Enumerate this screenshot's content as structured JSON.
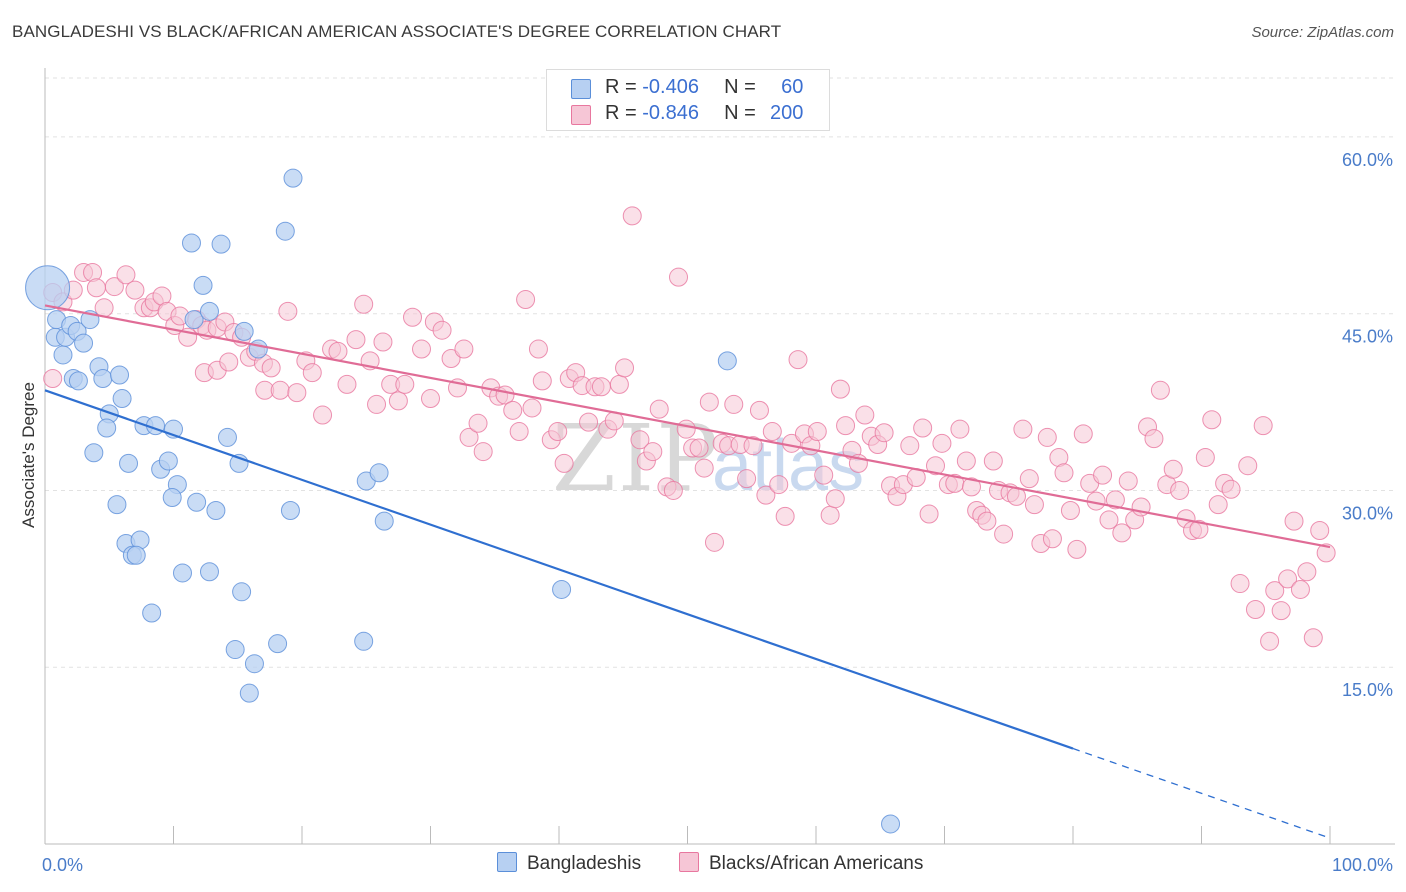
{
  "title": "BANGLADESHI VS BLACK/AFRICAN AMERICAN ASSOCIATE'S DEGREE CORRELATION CHART",
  "source": "Source: ZipAtlas.com",
  "watermark": {
    "zip": "ZIP",
    "atlas": "atlas"
  },
  "colors": {
    "blue": "#5b8fd9",
    "blue_fill": "#b7d0f2",
    "blue_line": "#2f6fd0",
    "pink": "#e8779f",
    "pink_fill": "#f6c6d6",
    "pink_line": "#e06c96",
    "tick": "#4a7cc9",
    "grid": "#e2e2e2"
  },
  "legend": {
    "rows": [
      {
        "r_label": "R =",
        "r_value": "-0.406",
        "n_label": "N =",
        "n_value": "60",
        "series": "blue"
      },
      {
        "r_label": "R =",
        "r_value": "-0.846",
        "n_label": "N =",
        "n_value": "200",
        "series": "pink"
      }
    ],
    "bottom": [
      "Bangladeshis",
      "Blacks/African Americans"
    ]
  },
  "chart_data": {
    "type": "scatter",
    "xlabel": "",
    "ylabel": "Associate's Degree",
    "xlim": [
      0,
      100
    ],
    "ylim": [
      0,
      65
    ],
    "x_tick_labels": [
      {
        "value": 0,
        "label": "0.0%"
      },
      {
        "value": 100,
        "label": "100.0%"
      }
    ],
    "y_tick_labels": [
      {
        "value": 15,
        "label": "15.0%"
      },
      {
        "value": 30,
        "label": "30.0%"
      },
      {
        "value": 45,
        "label": "45.0%"
      },
      {
        "value": 60,
        "label": "60.0%"
      }
    ],
    "grid": true,
    "series": [
      {
        "name": "Bangladeshis",
        "color": "blue",
        "trend": {
          "x0": 0,
          "y0": 38.5,
          "x1": 100,
          "y1": 0.5,
          "solid_until_x": 80
        },
        "points": [
          [
            0.2,
            47.2
          ],
          [
            0.8,
            43
          ],
          [
            0.9,
            44.5
          ],
          [
            1.4,
            41.5
          ],
          [
            1.6,
            43
          ],
          [
            2.0,
            44
          ],
          [
            2.5,
            43.5
          ],
          [
            3.0,
            42.5
          ],
          [
            3.5,
            44.5
          ],
          [
            2.2,
            39.5
          ],
          [
            2.6,
            39.3
          ],
          [
            4.2,
            40.5
          ],
          [
            4.5,
            39.5
          ],
          [
            5.8,
            39.8
          ],
          [
            5.0,
            36.5
          ],
          [
            4.8,
            35.3
          ],
          [
            6.0,
            37.8
          ],
          [
            7.7,
            35.5
          ],
          [
            8.6,
            35.5
          ],
          [
            10.0,
            35.2
          ],
          [
            3.8,
            33.2
          ],
          [
            6.5,
            32.3
          ],
          [
            9.0,
            31.8
          ],
          [
            9.6,
            32.5
          ],
          [
            10.3,
            30.5
          ],
          [
            9.9,
            29.4
          ],
          [
            11.8,
            29
          ],
          [
            13.3,
            28.3
          ],
          [
            5.6,
            28.8
          ],
          [
            6.3,
            25.5
          ],
          [
            7.4,
            25.8
          ],
          [
            6.8,
            24.5
          ],
          [
            7.1,
            24.5
          ],
          [
            10.7,
            23
          ],
          [
            12.8,
            23.1
          ],
          [
            15.3,
            21.4
          ],
          [
            8.3,
            19.6
          ],
          [
            14.8,
            16.5
          ],
          [
            16.3,
            15.3
          ],
          [
            15.9,
            12.8
          ],
          [
            18.1,
            17
          ],
          [
            24.8,
            17.2
          ],
          [
            19.1,
            28.3
          ],
          [
            14.2,
            34.5
          ],
          [
            15.1,
            32.3
          ],
          [
            25,
            30.8
          ],
          [
            26,
            31.5
          ],
          [
            26.4,
            27.4
          ],
          [
            18.7,
            52.0
          ],
          [
            19.3,
            56.5
          ],
          [
            11.4,
            51
          ],
          [
            13.7,
            50.9
          ],
          [
            12.3,
            47.4
          ],
          [
            11.6,
            44.5
          ],
          [
            12.8,
            45.2
          ],
          [
            15.5,
            43.5
          ],
          [
            16.6,
            42
          ],
          [
            53.1,
            41
          ],
          [
            40.2,
            21.6
          ],
          [
            65.8,
            1.7
          ]
        ]
      },
      {
        "name": "Blacks/African Americans",
        "color": "pink",
        "trend": {
          "x0": 0,
          "y0": 45.7,
          "x1": 100,
          "y1": 25.2
        },
        "points": [
          [
            0.6,
            46.8
          ],
          [
            0.6,
            39.5
          ],
          [
            1.4,
            46
          ],
          [
            2.2,
            47
          ],
          [
            3.0,
            48.5
          ],
          [
            3.7,
            48.5
          ],
          [
            4.0,
            47.2
          ],
          [
            4.6,
            45.5
          ],
          [
            5.4,
            47.3
          ],
          [
            6.3,
            48.3
          ],
          [
            7.0,
            47
          ],
          [
            7.7,
            45.5
          ],
          [
            8.2,
            45.5
          ],
          [
            8.5,
            46
          ],
          [
            9.1,
            46.5
          ],
          [
            9.5,
            45.2
          ],
          [
            10.1,
            44
          ],
          [
            10.5,
            44.8
          ],
          [
            11.1,
            43
          ],
          [
            11.8,
            44.5
          ],
          [
            12.2,
            44
          ],
          [
            12.6,
            43.6
          ],
          [
            13.4,
            43.8
          ],
          [
            14.0,
            44.3
          ],
          [
            14.7,
            43.4
          ],
          [
            15.3,
            43
          ],
          [
            15.9,
            41.3
          ],
          [
            16.4,
            41.8
          ],
          [
            17.0,
            40.8
          ],
          [
            17.6,
            40.4
          ],
          [
            12.4,
            40
          ],
          [
            13.4,
            40.2
          ],
          [
            14.3,
            40.9
          ],
          [
            17.1,
            38.5
          ],
          [
            18.3,
            38.5
          ],
          [
            18.9,
            45.2
          ],
          [
            19.6,
            38.3
          ],
          [
            20.3,
            41
          ],
          [
            20.8,
            40
          ],
          [
            21.6,
            36.4
          ],
          [
            22.3,
            42
          ],
          [
            22.8,
            41.8
          ],
          [
            23.5,
            39
          ],
          [
            24.2,
            42.8
          ],
          [
            24.8,
            45.8
          ],
          [
            25.3,
            41
          ],
          [
            25.8,
            37.3
          ],
          [
            26.3,
            42.6
          ],
          [
            26.9,
            39
          ],
          [
            27.5,
            37.6
          ],
          [
            28.0,
            39
          ],
          [
            28.6,
            44.7
          ],
          [
            29.3,
            42
          ],
          [
            30.0,
            37.8
          ],
          [
            30.3,
            44.3
          ],
          [
            30.9,
            43.6
          ],
          [
            31.6,
            41.2
          ],
          [
            32.1,
            38.7
          ],
          [
            32.6,
            42
          ],
          [
            33.0,
            34.5
          ],
          [
            33.7,
            35.7
          ],
          [
            34.1,
            33.3
          ],
          [
            34.7,
            38.7
          ],
          [
            35.3,
            38
          ],
          [
            35.8,
            38.1
          ],
          [
            36.4,
            36.8
          ],
          [
            36.9,
            35
          ],
          [
            37.4,
            46.2
          ],
          [
            37.9,
            37
          ],
          [
            38.4,
            42
          ],
          [
            38.7,
            39.3
          ],
          [
            39.4,
            34.3
          ],
          [
            39.9,
            35
          ],
          [
            40.4,
            32.3
          ],
          [
            40.8,
            39.5
          ],
          [
            41.3,
            40
          ],
          [
            41.8,
            38.9
          ],
          [
            42.3,
            35.8
          ],
          [
            42.8,
            38.8
          ],
          [
            43.3,
            38.8
          ],
          [
            43.8,
            35.2
          ],
          [
            44.3,
            35.9
          ],
          [
            44.7,
            39
          ],
          [
            45.1,
            40.4
          ],
          [
            45.7,
            53.3
          ],
          [
            46.3,
            34.3
          ],
          [
            46.8,
            32.5
          ],
          [
            47.3,
            33.3
          ],
          [
            47.8,
            36.9
          ],
          [
            48.4,
            30.3
          ],
          [
            48.9,
            30
          ],
          [
            49.3,
            48.1
          ],
          [
            49.9,
            35.2
          ],
          [
            50.4,
            33.6
          ],
          [
            50.9,
            33.6
          ],
          [
            51.3,
            31.9
          ],
          [
            51.7,
            37.5
          ],
          [
            52.1,
            25.6
          ],
          [
            52.7,
            34
          ],
          [
            53.2,
            33.8
          ],
          [
            53.6,
            37.3
          ],
          [
            54.1,
            33.9
          ],
          [
            54.6,
            31
          ],
          [
            55.1,
            33.8
          ],
          [
            55.6,
            36.8
          ],
          [
            56.1,
            29.6
          ],
          [
            56.6,
            35
          ],
          [
            57.1,
            30.5
          ],
          [
            57.6,
            27.8
          ],
          [
            58.1,
            34
          ],
          [
            58.6,
            41.1
          ],
          [
            59.1,
            34.8
          ],
          [
            59.6,
            33.8
          ],
          [
            60.1,
            35
          ],
          [
            60.6,
            31.3
          ],
          [
            61.1,
            27.9
          ],
          [
            61.5,
            29.3
          ],
          [
            61.9,
            38.6
          ],
          [
            62.3,
            35.5
          ],
          [
            62.8,
            33.4
          ],
          [
            63.3,
            32.3
          ],
          [
            63.8,
            36.4
          ],
          [
            64.3,
            34.6
          ],
          [
            64.8,
            33.9
          ],
          [
            65.3,
            34.9
          ],
          [
            65.8,
            30.4
          ],
          [
            66.3,
            29.5
          ],
          [
            66.8,
            30.5
          ],
          [
            67.3,
            33.8
          ],
          [
            67.8,
            31.1
          ],
          [
            68.3,
            35.3
          ],
          [
            68.8,
            28
          ],
          [
            69.3,
            32.1
          ],
          [
            69.8,
            34
          ],
          [
            70.3,
            30.5
          ],
          [
            70.8,
            30.6
          ],
          [
            71.2,
            35.2
          ],
          [
            71.7,
            32.5
          ],
          [
            72.1,
            30.3
          ],
          [
            72.5,
            28.3
          ],
          [
            72.9,
            27.9
          ],
          [
            73.3,
            27.4
          ],
          [
            73.8,
            32.5
          ],
          [
            74.2,
            30
          ],
          [
            74.6,
            26.3
          ],
          [
            75.1,
            29.8
          ],
          [
            75.6,
            29.5
          ],
          [
            76.1,
            35.2
          ],
          [
            76.6,
            31
          ],
          [
            77.0,
            28.8
          ],
          [
            77.5,
            25.5
          ],
          [
            78.0,
            34.5
          ],
          [
            78.4,
            25.9
          ],
          [
            78.9,
            32.8
          ],
          [
            79.3,
            31.5
          ],
          [
            79.8,
            28.3
          ],
          [
            80.3,
            25
          ],
          [
            80.8,
            34.8
          ],
          [
            81.3,
            30.6
          ],
          [
            81.8,
            29.1
          ],
          [
            82.3,
            31.3
          ],
          [
            82.8,
            27.5
          ],
          [
            83.3,
            29.2
          ],
          [
            83.8,
            26.4
          ],
          [
            84.3,
            30.8
          ],
          [
            84.8,
            27.5
          ],
          [
            85.3,
            28.6
          ],
          [
            85.8,
            35.4
          ],
          [
            86.3,
            34.4
          ],
          [
            86.8,
            38.5
          ],
          [
            87.3,
            30.5
          ],
          [
            87.8,
            31.8
          ],
          [
            88.3,
            30
          ],
          [
            88.8,
            27.6
          ],
          [
            89.3,
            26.6
          ],
          [
            89.8,
            26.7
          ],
          [
            90.3,
            32.8
          ],
          [
            90.8,
            36
          ],
          [
            91.3,
            28.8
          ],
          [
            91.8,
            30.6
          ],
          [
            92.3,
            30.1
          ],
          [
            93.0,
            22.1
          ],
          [
            93.6,
            32.1
          ],
          [
            94.2,
            19.9
          ],
          [
            94.8,
            35.5
          ],
          [
            95.3,
            17.2
          ],
          [
            95.7,
            21.5
          ],
          [
            96.2,
            19.8
          ],
          [
            96.7,
            22.5
          ],
          [
            97.2,
            27.4
          ],
          [
            97.7,
            21.6
          ],
          [
            98.2,
            23.1
          ],
          [
            98.7,
            17.5
          ],
          [
            99.2,
            26.6
          ],
          [
            99.7,
            24.7
          ]
        ]
      }
    ]
  }
}
